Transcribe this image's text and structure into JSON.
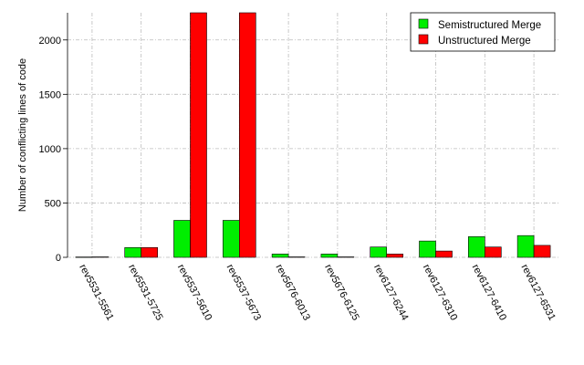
{
  "chart_data": {
    "type": "bar",
    "title": "",
    "xlabel": "",
    "ylabel": "Number of conflicting lines of code",
    "ylim": [
      0,
      2250
    ],
    "yticks": [
      0,
      500,
      1000,
      1500,
      2000
    ],
    "grid": true,
    "legend_position": "top-right",
    "categories": [
      "rev5531-5561",
      "rev5531-5725",
      "rev5537-5610",
      "rev5537-5673",
      "rev5676-6013",
      "rev5676-6125",
      "rev6127-6244",
      "rev6127-6310",
      "rev6127-6410",
      "rev6127-6531"
    ],
    "series": [
      {
        "name": "Semistructured Merge",
        "color": "#00ee00",
        "values": [
          3,
          90,
          340,
          340,
          30,
          30,
          95,
          150,
          190,
          200
        ]
      },
      {
        "name": "Unstructured Merge",
        "color": "#ff0000",
        "values": [
          4,
          90,
          2250,
          2250,
          4,
          4,
          30,
          58,
          95,
          110
        ]
      }
    ]
  }
}
